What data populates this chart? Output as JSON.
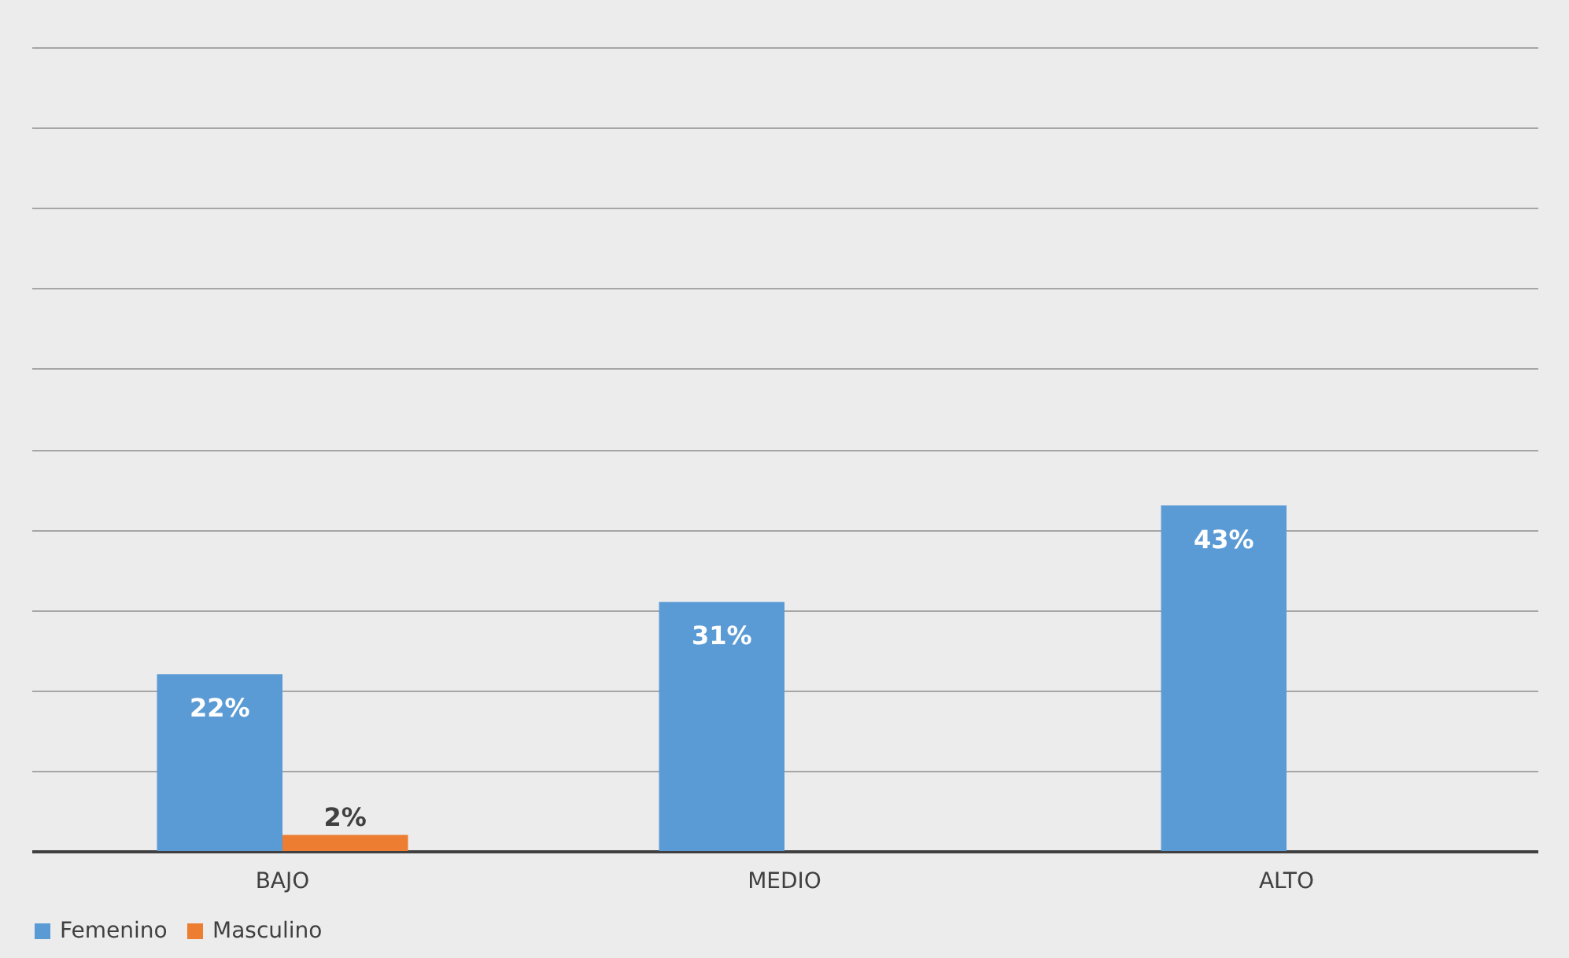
{
  "chart_data": {
    "type": "bar",
    "categories": [
      "BAJO",
      "MEDIO",
      "ALTO"
    ],
    "series": [
      {
        "name": "Femenino",
        "color": "#5b9bd5",
        "values": [
          22,
          31,
          43
        ],
        "value_labels": [
          "22%",
          "31%",
          "43%"
        ]
      },
      {
        "name": "Masculino",
        "color": "#ed7d31",
        "values": [
          2,
          null,
          null
        ],
        "value_labels": [
          "2%",
          null,
          null
        ]
      }
    ],
    "ylim": [
      0,
      100
    ],
    "yticks": [
      {
        "value": 0,
        "label": null
      },
      {
        "value": 10,
        "label": null
      },
      {
        "value": 20,
        "label": null
      },
      {
        "value": 30,
        "label": null
      },
      {
        "value": 40,
        "label": null
      },
      {
        "value": 50,
        "label": null
      },
      {
        "value": 60,
        "label": null
      },
      {
        "value": 70,
        "label": null
      },
      {
        "value": 80,
        "label": null
      },
      {
        "value": 90,
        "label": null
      },
      {
        "value": 100,
        "label": null
      }
    ],
    "tick_labels": "x",
    "grid": "y",
    "legend": "bottom"
  }
}
